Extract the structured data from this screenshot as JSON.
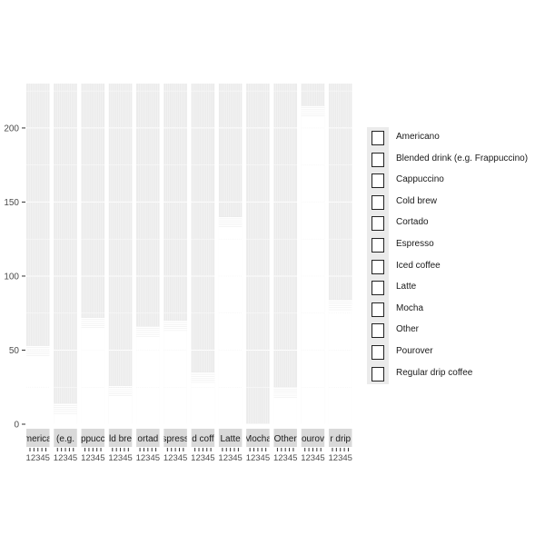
{
  "chart_data": {
    "type": "bar",
    "title": "",
    "xlabel": "",
    "ylabel": "",
    "ylim": [
      0,
      230
    ],
    "yticks": [
      0,
      50,
      100,
      150,
      200
    ],
    "facet_labels": [
      "Americano",
      "Blended drink (e.g. Frappuccino)",
      "Cappuccino",
      "Cold brew",
      "Cortado",
      "Espresso",
      "Iced coffee",
      "Latte",
      "Mocha",
      "Other",
      "Pourover",
      "Regular drip coffee"
    ],
    "facet_label_shown": [
      "merica",
      "(e.g.",
      "ppucc",
      "ld bre",
      "ortad",
      "spress",
      "d coff",
      "Latte",
      "Mocha",
      "Other",
      "ourov",
      "r drip"
    ],
    "x_tick_labels": [
      "1",
      "2",
      "3",
      "4",
      "5"
    ],
    "facet_top_values": [
      53,
      14,
      72,
      26,
      66,
      70,
      35,
      140,
      0,
      25,
      215,
      84
    ],
    "legend": {
      "placement": "right",
      "entries": [
        "Americano",
        "Blended drink (e.g. Frappuccino)",
        "Cappuccino",
        "Cold brew",
        "Cortado",
        "Espresso",
        "Iced coffee",
        "Latte",
        "Mocha",
        "Other",
        "Pourover",
        "Regular drip coffee"
      ]
    },
    "grid": true,
    "colors": {
      "panel_background": "#ebebeb",
      "strip_background": "#d9d9d9",
      "bar_fill": "#ffffff",
      "bar_outline": "#c8c8c8",
      "gridline": "#ebebeb",
      "axis_text": "#4d4d4d"
    }
  }
}
